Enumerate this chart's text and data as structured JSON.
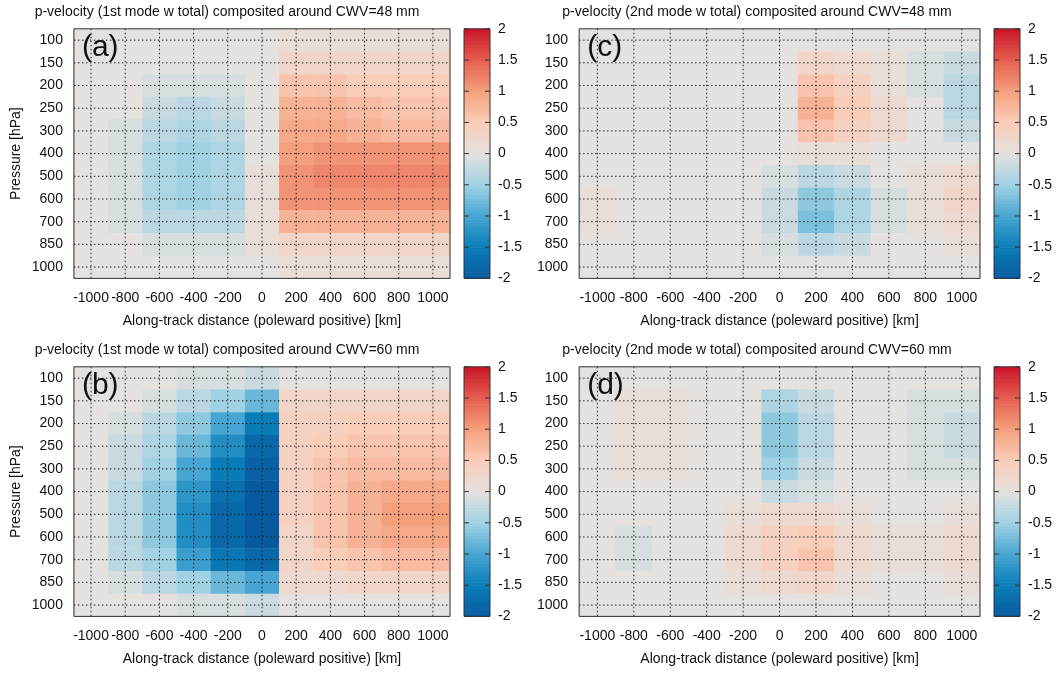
{
  "chart_data": [
    {
      "type": "heatmap",
      "title": "p-velocity (1st mode w total) composited around CWV=48 mm",
      "xlabel": "Along-track distance (poleward positive) [km]",
      "ylabel": "Pressure [hPa]",
      "annotations": [
        "(a)"
      ],
      "grid": true,
      "clim": [
        -2,
        2
      ],
      "cticks": [
        -2,
        -1.5,
        -1,
        -0.5,
        0,
        0.5,
        1,
        1.5,
        2
      ],
      "categories": [
        "-1000",
        "-800",
        "-600",
        "-400",
        "-200",
        "0",
        "200",
        "400",
        "600",
        "800",
        "1000"
      ],
      "y_categories": [
        "100",
        "150",
        "200",
        "250",
        "300",
        "400",
        "500",
        "600",
        "700",
        "850",
        "1000"
      ],
      "cells": [
        [
          0,
          0,
          0,
          0,
          0,
          0,
          0.1,
          0.1,
          0.1,
          0.1,
          0.1
        ],
        [
          0,
          0,
          0,
          0,
          0,
          0,
          0.3,
          0.3,
          0.3,
          0.3,
          0.3
        ],
        [
          0,
          0,
          -0.1,
          -0.1,
          -0.1,
          0,
          0.6,
          0.6,
          0.5,
          0.5,
          0.5
        ],
        [
          0,
          0,
          -0.2,
          -0.3,
          -0.2,
          0,
          0.8,
          0.8,
          0.7,
          0.6,
          0.6
        ],
        [
          0,
          -0.1,
          -0.3,
          -0.4,
          -0.3,
          0,
          0.9,
          0.9,
          0.8,
          0.7,
          0.7
        ],
        [
          0,
          -0.1,
          -0.4,
          -0.5,
          -0.4,
          0,
          1.0,
          1.1,
          1.1,
          1.1,
          1.1
        ],
        [
          0,
          -0.1,
          -0.4,
          -0.5,
          -0.4,
          0.1,
          1.1,
          1.2,
          1.2,
          1.2,
          1.2
        ],
        [
          0,
          -0.1,
          -0.4,
          -0.5,
          -0.4,
          0.1,
          1.1,
          1.1,
          1.1,
          1.1,
          1.1
        ],
        [
          0,
          -0.1,
          -0.3,
          -0.3,
          -0.3,
          0.1,
          0.8,
          0.8,
          0.8,
          0.8,
          0.8
        ],
        [
          0,
          0,
          -0.1,
          -0.1,
          -0.1,
          0.1,
          0.3,
          0.3,
          0.3,
          0.3,
          0.3
        ],
        [
          0,
          0,
          0,
          0,
          0,
          0,
          0.1,
          0.1,
          0.1,
          0.1,
          0.1
        ]
      ]
    },
    {
      "type": "heatmap",
      "title": "p-velocity (2nd mode w total) composited around CWV=48 mm",
      "xlabel": "Along-track distance (poleward positive) [km]",
      "annotations": [
        "(c)"
      ],
      "grid": true,
      "clim": [
        -2,
        2
      ],
      "cticks": [
        -2,
        -1.5,
        -1,
        -0.5,
        0,
        0.5,
        1,
        1.5,
        2
      ],
      "categories": [
        "-1000",
        "-800",
        "-600",
        "-400",
        "-200",
        "0",
        "200",
        "400",
        "600",
        "800",
        "1000"
      ],
      "y_categories": [
        "100",
        "150",
        "200",
        "250",
        "300",
        "400",
        "500",
        "600",
        "700",
        "850",
        "1000"
      ],
      "cells": [
        [
          0,
          0,
          0,
          0,
          0,
          0,
          0,
          0,
          0,
          0,
          0
        ],
        [
          0,
          0,
          0,
          0,
          0,
          0,
          0.3,
          0.2,
          0.1,
          -0.1,
          -0.2
        ],
        [
          0,
          0,
          0,
          0,
          0,
          0,
          0.6,
          0.4,
          0.1,
          -0.1,
          -0.3
        ],
        [
          0,
          0,
          0,
          0,
          0,
          0,
          0.8,
          0.5,
          0.2,
          0,
          -0.3
        ],
        [
          0,
          0,
          0,
          0,
          0,
          0,
          0.6,
          0.4,
          0.2,
          0,
          -0.2
        ],
        [
          0,
          0,
          0,
          0,
          0,
          0,
          0.1,
          0.1,
          0,
          0,
          0
        ],
        [
          0,
          0,
          0,
          0,
          0,
          -0.1,
          -0.3,
          -0.2,
          0,
          0.1,
          0.2
        ],
        [
          0.1,
          0,
          0,
          0,
          0,
          -0.2,
          -0.6,
          -0.4,
          -0.1,
          0.1,
          0.3
        ],
        [
          0.1,
          0,
          0,
          0,
          0,
          -0.2,
          -0.7,
          -0.4,
          -0.1,
          0.1,
          0.2
        ],
        [
          0,
          0,
          0,
          0,
          0,
          -0.1,
          -0.3,
          -0.2,
          0,
          0,
          0.1
        ],
        [
          0,
          0,
          0,
          0,
          0,
          0,
          0,
          0,
          0,
          0,
          0
        ]
      ]
    },
    {
      "type": "heatmap",
      "title": "p-velocity (1st mode w total) composited around CWV=60 mm",
      "xlabel": "Along-track distance (poleward positive) [km]",
      "ylabel": "Pressure [hPa]",
      "annotations": [
        "(b)"
      ],
      "grid": true,
      "clim": [
        -2,
        2
      ],
      "cticks": [
        -2,
        -1.5,
        -1,
        -0.5,
        0,
        0.5,
        1,
        1.5,
        2
      ],
      "categories": [
        "-1000",
        "-800",
        "-600",
        "-400",
        "-200",
        "0",
        "200",
        "400",
        "600",
        "800",
        "1000"
      ],
      "y_categories": [
        "100",
        "150",
        "200",
        "250",
        "300",
        "400",
        "500",
        "600",
        "700",
        "850",
        "1000"
      ],
      "cells": [
        [
          0,
          0,
          0,
          -0.1,
          -0.1,
          -0.2,
          0,
          0,
          0,
          0,
          0
        ],
        [
          0,
          0,
          -0.1,
          -0.3,
          -0.5,
          -0.8,
          0.3,
          0.3,
          0.3,
          0.3,
          0.3
        ],
        [
          0,
          -0.1,
          -0.3,
          -0.6,
          -1.0,
          -1.5,
          0.4,
          0.4,
          0.5,
          0.5,
          0.5
        ],
        [
          0,
          -0.2,
          -0.4,
          -0.8,
          -1.3,
          -1.8,
          0.4,
          0.5,
          0.6,
          0.6,
          0.6
        ],
        [
          0,
          -0.2,
          -0.5,
          -1.0,
          -1.5,
          -1.9,
          0.4,
          0.6,
          0.7,
          0.7,
          0.7
        ],
        [
          0,
          -0.3,
          -0.6,
          -1.2,
          -1.7,
          -2,
          0.4,
          0.6,
          0.8,
          0.9,
          0.9
        ],
        [
          0,
          -0.3,
          -0.6,
          -1.3,
          -1.8,
          -2,
          0.4,
          0.6,
          0.8,
          1.0,
          1.0
        ],
        [
          0,
          -0.3,
          -0.6,
          -1.3,
          -1.8,
          -2,
          0.3,
          0.6,
          0.8,
          0.9,
          0.9
        ],
        [
          0,
          -0.3,
          -0.5,
          -1.1,
          -1.6,
          -1.8,
          0.3,
          0.5,
          0.6,
          0.7,
          0.7
        ],
        [
          0,
          -0.1,
          -0.3,
          -0.5,
          -0.8,
          -1.0,
          0.2,
          0.2,
          0.3,
          0.3,
          0.3
        ],
        [
          0,
          0,
          0,
          -0.1,
          -0.1,
          -0.2,
          0,
          0,
          0,
          0,
          0
        ]
      ]
    },
    {
      "type": "heatmap",
      "title": "p-velocity (2nd mode w total) composited around CWV=60 mm",
      "xlabel": "Along-track distance (poleward positive) [km]",
      "annotations": [
        "(d)"
      ],
      "grid": true,
      "clim": [
        -2,
        2
      ],
      "cticks": [
        -2,
        -1.5,
        -1,
        -0.5,
        0,
        0.5,
        1,
        1.5,
        2
      ],
      "categories": [
        "-1000",
        "-800",
        "-600",
        "-400",
        "-200",
        "0",
        "200",
        "400",
        "600",
        "800",
        "1000"
      ],
      "y_categories": [
        "100",
        "150",
        "200",
        "250",
        "300",
        "400",
        "500",
        "600",
        "700",
        "850",
        "1000"
      ],
      "cells": [
        [
          0,
          0,
          0,
          0,
          0,
          0,
          0,
          0,
          0,
          0,
          0
        ],
        [
          0,
          0.1,
          0.1,
          0,
          0,
          -0.4,
          -0.2,
          0,
          0,
          -0.1,
          -0.1
        ],
        [
          0,
          0.1,
          0.1,
          0,
          0,
          -0.6,
          -0.3,
          0,
          0,
          -0.1,
          -0.2
        ],
        [
          0,
          0.1,
          0.1,
          0,
          0,
          -0.6,
          -0.3,
          0,
          0,
          -0.1,
          -0.2
        ],
        [
          0,
          0.1,
          0.1,
          0,
          0,
          -0.5,
          -0.2,
          0,
          0,
          -0.1,
          -0.1
        ],
        [
          0,
          0,
          0,
          0,
          0,
          -0.2,
          -0.1,
          0,
          0,
          0,
          0
        ],
        [
          0,
          0,
          0,
          0,
          0.1,
          0.2,
          0.2,
          0.1,
          0,
          0,
          0.1
        ],
        [
          0,
          -0.1,
          0,
          0,
          0.2,
          0.4,
          0.5,
          0.2,
          0.1,
          0.1,
          0.2
        ],
        [
          0,
          -0.1,
          0,
          0,
          0.2,
          0.4,
          0.6,
          0.2,
          0.1,
          0.1,
          0.2
        ],
        [
          0,
          0,
          0,
          0,
          0.1,
          0.2,
          0.3,
          0.1,
          0,
          0,
          0.1
        ],
        [
          0,
          0,
          0,
          0,
          0,
          0,
          0,
          0,
          0,
          0,
          0
        ]
      ]
    }
  ]
}
